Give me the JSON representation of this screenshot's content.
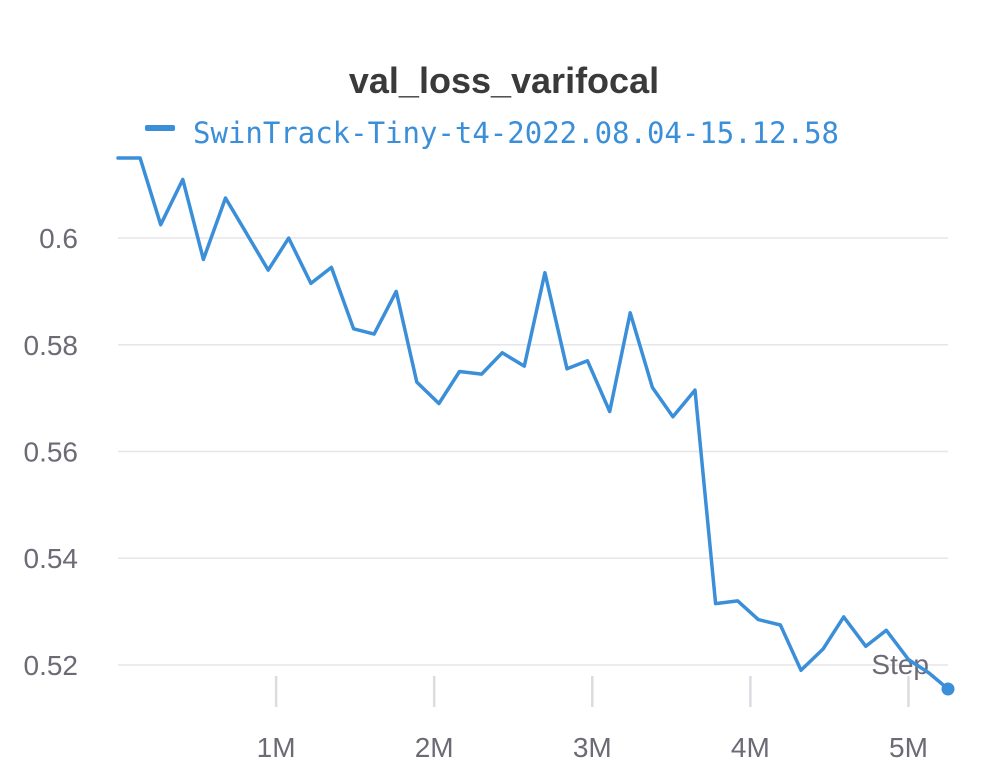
{
  "chart_data": {
    "type": "line",
    "title": "val_loss_varifocal",
    "xlabel": "Step",
    "ylabel": "",
    "legend": "top",
    "grid": true,
    "xlim": [
      0,
      5250000
    ],
    "ylim": [
      0.5125,
      0.6165
    ],
    "y_ticks": [
      0.52,
      0.54,
      0.56,
      0.58,
      0.6
    ],
    "y_tick_labels": [
      "0.52",
      "0.54",
      "0.56",
      "0.58",
      "0.6"
    ],
    "x_ticks": [
      1000000,
      2000000,
      3000000,
      4000000,
      5000000
    ],
    "x_tick_labels": [
      "1M",
      "2M",
      "3M",
      "4M",
      "5M"
    ],
    "series": [
      {
        "name": "SwinTrack-Tiny-t4-2022.08.04-15.12.58",
        "color": "#3b8fd9",
        "x": [
          0,
          140000,
          270000,
          410000,
          540000,
          680000,
          810000,
          950000,
          1080000,
          1220000,
          1350000,
          1490000,
          1620000,
          1760000,
          1890000,
          2030000,
          2160000,
          2300000,
          2430000,
          2570000,
          2700000,
          2840000,
          2970000,
          3110000,
          3240000,
          3380000,
          3510000,
          3650000,
          3780000,
          3920000,
          4050000,
          4190000,
          4320000,
          4460000,
          4590000,
          4730000,
          4860000,
          5000000,
          5130000,
          5250000
        ],
        "y": [
          0.615,
          0.615,
          0.6025,
          0.611,
          0.596,
          0.6075,
          0.601,
          0.594,
          0.6,
          0.5915,
          0.5945,
          0.583,
          0.582,
          0.59,
          0.573,
          0.569,
          0.575,
          0.5745,
          0.5785,
          0.576,
          0.5935,
          0.5755,
          0.577,
          0.5675,
          0.586,
          0.572,
          0.5665,
          0.5715,
          0.5315,
          0.532,
          0.5285,
          0.5275,
          0.519,
          0.523,
          0.529,
          0.5235,
          0.5265,
          0.521,
          0.5185,
          0.5155
        ]
      }
    ]
  }
}
